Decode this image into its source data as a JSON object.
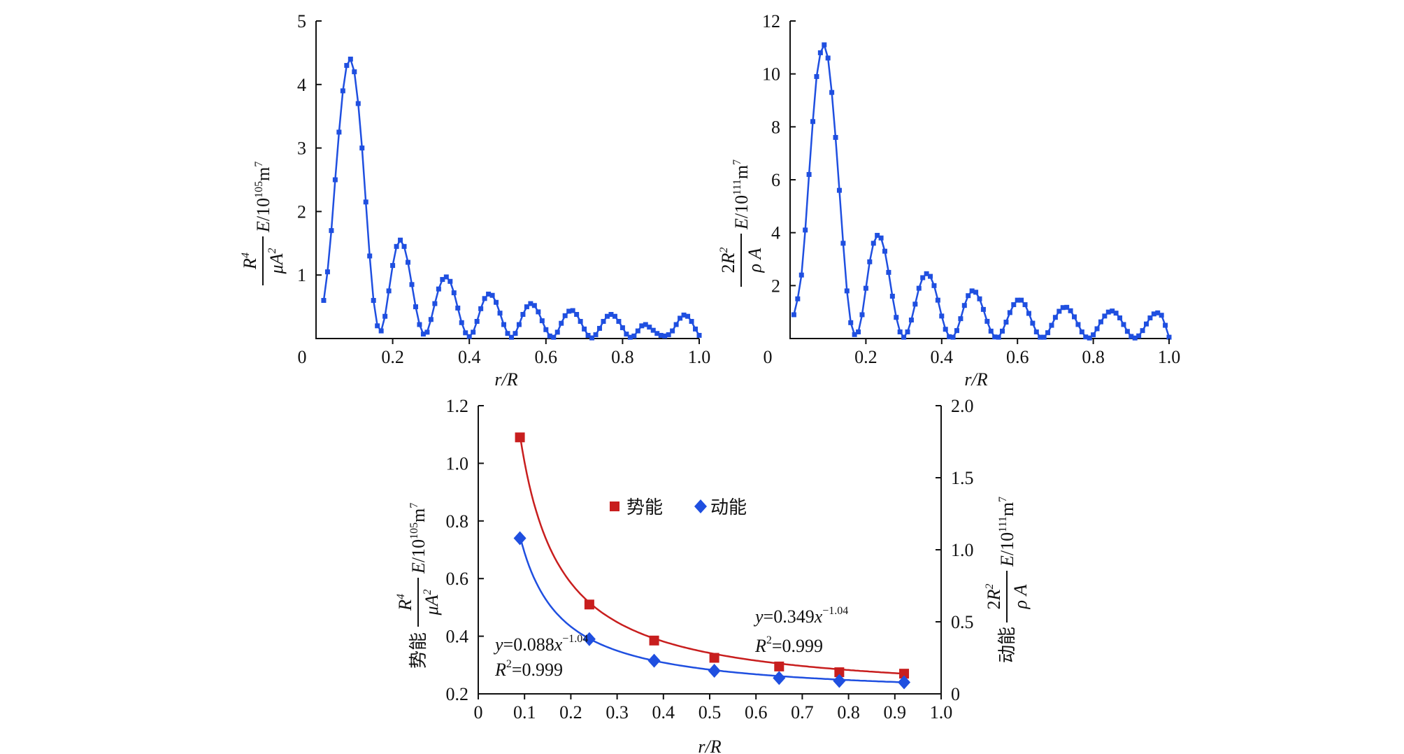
{
  "chart_data": [
    {
      "type": "line",
      "xlabel": "r/R",
      "ylabel_num": "R4",
      "ylabel_den": "μA2",
      "ylabel_tail": "E/10105m7",
      "xlim": [
        0,
        1.0
      ],
      "ylim": [
        0,
        5
      ],
      "xticks": [
        "0",
        "0.2",
        "0.4",
        "0.6",
        "0.8",
        "1.0"
      ],
      "yticks": [
        "1",
        "2",
        "3",
        "4",
        "5"
      ],
      "color": "#1f4fe0",
      "series": [
        {
          "x": [
            0.02,
            0.03,
            0.04,
            0.05,
            0.06,
            0.07,
            0.08,
            0.09,
            0.1,
            0.11,
            0.12,
            0.13,
            0.14,
            0.15,
            0.16,
            0.17,
            0.18,
            0.19,
            0.2,
            0.21,
            0.22,
            0.23,
            0.24,
            0.25,
            0.26,
            0.27,
            0.28,
            0.29,
            0.3,
            0.31,
            0.32,
            0.33,
            0.34,
            0.35,
            0.36,
            0.37,
            0.38,
            0.39,
            0.4,
            0.41,
            0.42,
            0.43,
            0.44,
            0.45,
            0.46,
            0.47,
            0.48,
            0.49,
            0.5,
            0.51,
            0.52,
            0.53,
            0.54,
            0.55,
            0.56,
            0.57,
            0.58,
            0.59,
            0.6,
            0.61,
            0.62,
            0.63,
            0.64,
            0.65,
            0.66,
            0.67,
            0.68,
            0.69,
            0.7,
            0.71,
            0.72,
            0.73,
            0.74,
            0.75,
            0.76,
            0.77,
            0.78,
            0.79,
            0.8,
            0.81,
            0.82,
            0.83,
            0.84,
            0.85,
            0.86,
            0.87,
            0.88,
            0.89,
            0.9,
            0.91,
            0.92,
            0.93,
            0.94,
            0.95,
            0.96,
            0.97,
            0.98,
            0.99,
            1.0
          ],
          "y": [
            0.6,
            1.05,
            1.7,
            2.5,
            3.25,
            3.9,
            4.3,
            4.4,
            4.2,
            3.7,
            3.0,
            2.15,
            1.3,
            0.6,
            0.2,
            0.12,
            0.35,
            0.75,
            1.15,
            1.45,
            1.55,
            1.45,
            1.2,
            0.85,
            0.5,
            0.22,
            0.07,
            0.1,
            0.3,
            0.55,
            0.78,
            0.93,
            0.97,
            0.9,
            0.72,
            0.48,
            0.25,
            0.09,
            0.03,
            0.1,
            0.27,
            0.47,
            0.63,
            0.7,
            0.68,
            0.57,
            0.4,
            0.22,
            0.08,
            0.02,
            0.08,
            0.22,
            0.38,
            0.5,
            0.55,
            0.52,
            0.42,
            0.28,
            0.14,
            0.04,
            0.02,
            0.1,
            0.24,
            0.36,
            0.43,
            0.44,
            0.38,
            0.27,
            0.15,
            0.05,
            0.01,
            0.06,
            0.16,
            0.27,
            0.35,
            0.38,
            0.35,
            0.27,
            0.17,
            0.07,
            0.02,
            0.04,
            0.12,
            0.2,
            0.22,
            0.18,
            0.13,
            0.08,
            0.05,
            0.04,
            0.06,
            0.12,
            0.22,
            0.32,
            0.37,
            0.35,
            0.27,
            0.15,
            0.05
          ]
        }
      ]
    },
    {
      "type": "line",
      "xlabel": "r/R",
      "ylabel_num": "2R2",
      "ylabel_den": "ρ A",
      "ylabel_tail": "E/10111m7",
      "xlim": [
        0,
        1.0
      ],
      "ylim": [
        0,
        12
      ],
      "xticks": [
        "0",
        "0.2",
        "0.4",
        "0.6",
        "0.8",
        "1.0"
      ],
      "yticks": [
        "2",
        "4",
        "6",
        "8",
        "10",
        "12"
      ],
      "color": "#1f4fe0",
      "series": [
        {
          "x": [
            0.01,
            0.02,
            0.03,
            0.04,
            0.05,
            0.06,
            0.07,
            0.08,
            0.09,
            0.1,
            0.11,
            0.12,
            0.13,
            0.14,
            0.15,
            0.16,
            0.17,
            0.18,
            0.19,
            0.2,
            0.21,
            0.22,
            0.23,
            0.24,
            0.25,
            0.26,
            0.27,
            0.28,
            0.29,
            0.3,
            0.31,
            0.32,
            0.33,
            0.34,
            0.35,
            0.36,
            0.37,
            0.38,
            0.39,
            0.4,
            0.41,
            0.42,
            0.43,
            0.44,
            0.45,
            0.46,
            0.47,
            0.48,
            0.49,
            0.5,
            0.51,
            0.52,
            0.53,
            0.54,
            0.55,
            0.56,
            0.57,
            0.58,
            0.59,
            0.6,
            0.61,
            0.62,
            0.63,
            0.64,
            0.65,
            0.66,
            0.67,
            0.68,
            0.69,
            0.7,
            0.71,
            0.72,
            0.73,
            0.74,
            0.75,
            0.76,
            0.77,
            0.78,
            0.79,
            0.8,
            0.81,
            0.82,
            0.83,
            0.84,
            0.85,
            0.86,
            0.87,
            0.88,
            0.89,
            0.9,
            0.91,
            0.92,
            0.93,
            0.94,
            0.95,
            0.96,
            0.97,
            0.98,
            0.99,
            1.0
          ],
          "y": [
            0.9,
            1.5,
            2.4,
            4.1,
            6.2,
            8.2,
            9.9,
            10.8,
            11.1,
            10.6,
            9.3,
            7.6,
            5.6,
            3.6,
            1.8,
            0.6,
            0.15,
            0.25,
            0.9,
            1.9,
            2.9,
            3.6,
            3.9,
            3.8,
            3.3,
            2.5,
            1.6,
            0.8,
            0.25,
            0.05,
            0.25,
            0.7,
            1.3,
            1.9,
            2.3,
            2.45,
            2.35,
            2.0,
            1.45,
            0.85,
            0.35,
            0.07,
            0.05,
            0.3,
            0.75,
            1.25,
            1.62,
            1.8,
            1.75,
            1.5,
            1.1,
            0.65,
            0.28,
            0.06,
            0.05,
            0.28,
            0.62,
            0.98,
            1.28,
            1.45,
            1.45,
            1.28,
            0.95,
            0.58,
            0.25,
            0.05,
            0.05,
            0.22,
            0.5,
            0.8,
            1.03,
            1.17,
            1.18,
            1.05,
            0.82,
            0.53,
            0.25,
            0.06,
            0.02,
            0.14,
            0.37,
            0.63,
            0.85,
            1.0,
            1.04,
            0.96,
            0.78,
            0.53,
            0.27,
            0.08,
            0.02,
            0.1,
            0.3,
            0.55,
            0.78,
            0.93,
            0.97,
            0.88,
            0.5,
            0.05
          ]
        }
      ]
    },
    {
      "type": "scatter",
      "xlabel": "r/R",
      "ylabel_left_prefix": "势能",
      "ylabel_left_num": "R4",
      "ylabel_left_den": "μA2",
      "ylabel_left_tail": "E/10105m7",
      "ylabel_right_prefix": "动能",
      "ylabel_right_num": "2R2",
      "ylabel_right_den": "ρ A",
      "ylabel_right_tail": "E/10111m7",
      "xlim": [
        0,
        1.0
      ],
      "ylim_left": [
        0.2,
        1.2
      ],
      "ylim_right": [
        0,
        2.0
      ],
      "xticks": [
        "0",
        "0.1",
        "0.2",
        "0.3",
        "0.4",
        "0.5",
        "0.6",
        "0.7",
        "0.8",
        "0.9",
        "1.0"
      ],
      "yticks_left": [
        "0.2",
        "0.4",
        "0.6",
        "0.8",
        "1.0",
        "1.2"
      ],
      "yticks_right": [
        "0",
        "0.5",
        "1.0",
        "1.5",
        "2.0"
      ],
      "legend": [
        {
          "name": "势能",
          "color": "#c81e1e",
          "marker": "square"
        },
        {
          "name": "动能",
          "color": "#1f4fe0",
          "marker": "diamond"
        }
      ],
      "series": [
        {
          "name": "势能",
          "axis": "left",
          "color": "#c81e1e",
          "x": [
            0.09,
            0.24,
            0.38,
            0.51,
            0.65,
            0.78,
            0.92
          ],
          "y": [
            1.09,
            0.51,
            0.385,
            0.325,
            0.295,
            0.275,
            0.27
          ],
          "fit": {
            "a": 0.349,
            "b": -1.04,
            "asym": 0.262
          }
        },
        {
          "name": "动能",
          "axis": "left",
          "color": "#1f4fe0",
          "x": [
            0.09,
            0.24,
            0.38,
            0.51,
            0.65,
            0.78,
            0.92
          ],
          "y": [
            0.74,
            0.39,
            0.315,
            0.28,
            0.255,
            0.245,
            0.24
          ],
          "fit": {
            "a": 0.088,
            "b": -1.04,
            "asym": 0.232
          }
        }
      ],
      "annotations": [
        {
          "eq_prefix": "y",
          "eq_mid": "=0.349",
          "eq_var": "x",
          "eq_sup": "−1.04",
          "r2_var": "R",
          "r2_sup": "2",
          "r2_val": "=0.999"
        },
        {
          "eq_prefix": "y",
          "eq_mid": "=0.088",
          "eq_var": "x",
          "eq_sup": "−1.04",
          "r2_var": "R",
          "r2_sup": "2",
          "r2_val": "=0.999"
        }
      ]
    }
  ]
}
